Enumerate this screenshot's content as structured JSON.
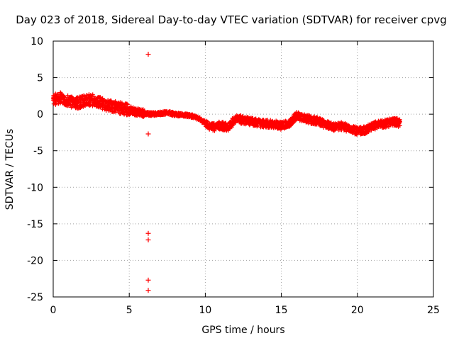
{
  "chart_data": {
    "type": "scatter",
    "title": "Day 023 of 2018, Sidereal Day-to-day VTEC variation (SDTVAR) for receiver cpvg",
    "xlabel": "GPS time / hours",
    "ylabel": "SDTVAR / TECUs",
    "xlim": [
      0,
      25
    ],
    "ylim": [
      -25,
      10
    ],
    "xticks": [
      0,
      5,
      10,
      15,
      20,
      25
    ],
    "yticks": [
      -25,
      -20,
      -15,
      -10,
      -5,
      0,
      5,
      10
    ],
    "grid": true,
    "marker": "+",
    "series_color": "#ff0000",
    "series": [
      {
        "name": "SDTVAR",
        "trend": {
          "x": [
            0.0,
            0.5,
            1.0,
            1.5,
            2.0,
            2.5,
            3.0,
            3.5,
            4.0,
            4.5,
            5.0,
            5.5,
            6.0,
            6.5,
            7.0,
            7.5,
            8.0,
            8.5,
            9.0,
            9.5,
            10.0,
            10.5,
            11.0,
            11.5,
            12.0,
            12.5,
            13.0,
            13.5,
            14.0,
            14.5,
            15.0,
            15.5,
            16.0,
            16.5,
            17.0,
            17.5,
            18.0,
            18.5,
            19.0,
            19.5,
            20.0,
            20.5,
            21.0,
            21.5,
            22.0,
            22.5,
            22.8
          ],
          "y": [
            2.0,
            2.2,
            1.8,
            1.5,
            1.8,
            2.0,
            1.6,
            1.2,
            1.0,
            0.8,
            0.6,
            0.3,
            0.1,
            0.0,
            0.1,
            0.2,
            0.0,
            -0.1,
            -0.2,
            -0.5,
            -1.2,
            -1.8,
            -1.5,
            -1.8,
            -0.6,
            -0.8,
            -1.0,
            -1.2,
            -1.3,
            -1.4,
            -1.6,
            -1.3,
            -0.2,
            -0.5,
            -0.8,
            -1.0,
            -1.5,
            -1.8,
            -1.6,
            -2.0,
            -2.3,
            -2.2,
            -1.6,
            -1.4,
            -1.2,
            -1.0,
            -1.3
          ]
        },
        "outliers": {
          "x": [
            6.25,
            6.25,
            6.25,
            6.25,
            6.25,
            6.25
          ],
          "y": [
            8.2,
            -2.7,
            -16.3,
            -17.2,
            -22.7,
            -24.1
          ]
        }
      }
    ]
  }
}
